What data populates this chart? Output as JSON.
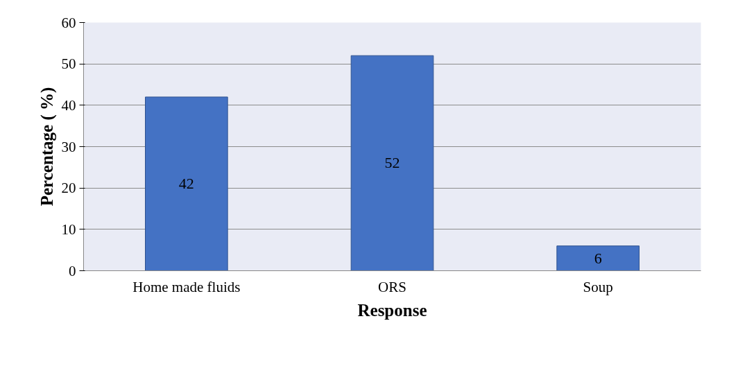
{
  "chart_data": {
    "type": "bar",
    "xlabel": "Response",
    "ylabel": "Percentage ( %)",
    "categories": [
      "Home made fluids",
      "ORS",
      "Soup"
    ],
    "values": [
      42,
      52,
      6
    ],
    "color": "#4472c4",
    "ylim": [
      0,
      60
    ],
    "yticks": [
      0,
      10,
      20,
      30,
      40,
      50,
      60
    ],
    "grid": "y",
    "data_labels": true
  }
}
